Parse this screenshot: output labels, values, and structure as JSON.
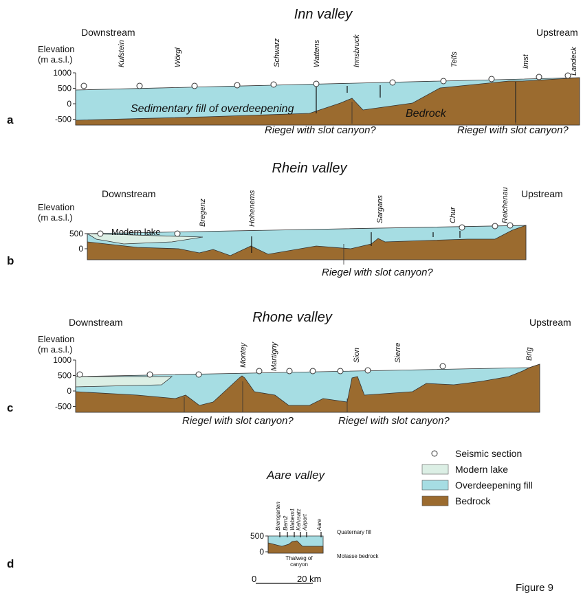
{
  "panels": [
    {
      "letter": "a",
      "title": "Inn valley",
      "downstream": "Downstream",
      "upstream": "Upstream",
      "axis_label": [
        "Elevation",
        "(m a.s.l.)"
      ],
      "yticks": [
        1000,
        500,
        0,
        -500
      ],
      "places": [
        "Kufstein",
        "Wörgl",
        "Schwarz",
        "Wattens",
        "Innsbruck",
        "Telfs",
        "Imst",
        "Landeck"
      ],
      "annotations": [
        "Sedimentary fill of overdeepening",
        "Bedrock",
        "Riegel with slot canyon?",
        "Riegel with slot canyon?"
      ]
    },
    {
      "letter": "b",
      "title": "Rhein valley",
      "downstream": "Downstream",
      "upstream": "Upstream",
      "axis_label": [
        "Elevation",
        "(m a.s.l.)"
      ],
      "yticks": [
        500,
        0
      ],
      "places": [
        "Bregenz",
        "Hohenems",
        "Sargans",
        "Chur",
        "Reichenau"
      ],
      "annotations": [
        "Modern lake",
        "Riegel with slot canyon?"
      ]
    },
    {
      "letter": "c",
      "title": "Rhone valley",
      "downstream": "Downstream",
      "upstream": "Upstream",
      "axis_label": [
        "Elevation",
        "(m a.s.l.)"
      ],
      "yticks": [
        1000,
        500,
        0,
        -500
      ],
      "places": [
        "Montey",
        "Martigny",
        "Sion",
        "Sierre",
        "Brig"
      ],
      "annotations": [
        "Riegel with slot canyon?",
        "Riegel with slot canyon?"
      ]
    },
    {
      "letter": "d",
      "title": "Aare valley",
      "yticks": [
        500,
        0
      ],
      "places": [
        "Bremgarten",
        "Bern2",
        "Wabern1",
        "Kehrsatz",
        "Airport",
        "Aare"
      ],
      "annotations": [
        "Quaternary fill",
        "Molasse bedrock",
        "Thalweg of",
        "canyon"
      ]
    }
  ],
  "legend": [
    "Seismic section",
    "Modern lake",
    "Overdeepening fill",
    "Bedrock"
  ],
  "scale_bar": {
    "start": "0",
    "end": "20 km"
  },
  "figure": "Figure 9"
}
